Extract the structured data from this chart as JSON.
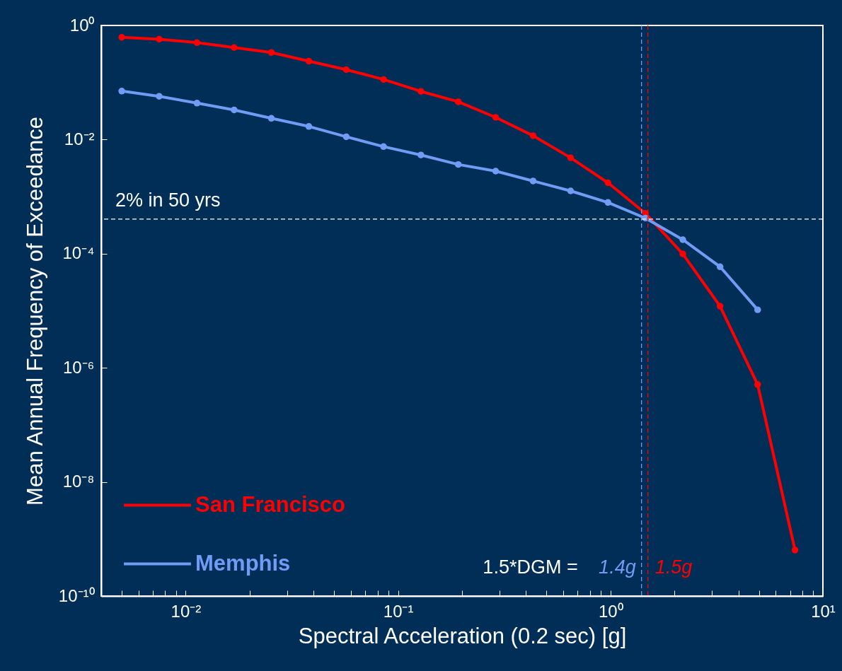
{
  "chart_data": {
    "type": "line",
    "xlabel": "Spectral Acceleration (0.2 sec)   [g]",
    "ylabel": "Mean Annual Frequency of Exceedance",
    "log": "xy",
    "grid": false,
    "legend": "bottom left",
    "marker": "circle",
    "line_style": "solid",
    "x": [
      0.005,
      0.0075,
      0.0113,
      0.0169,
      0.0253,
      0.038,
      0.057,
      0.0854,
      0.128,
      0.192,
      0.288,
      0.432,
      0.649,
      0.973,
      1.46,
      2.19,
      3.28,
      4.93,
      7.39
    ],
    "series": [
      {
        "name": "San Francisco",
        "color": "#ff0000",
        "values": [
          0.62,
          0.575,
          0.5,
          0.41,
          0.336,
          0.237,
          0.168,
          0.113,
          0.07,
          0.046,
          0.0245,
          0.0117,
          0.0048,
          0.00175,
          0.00051,
          9.9e-05,
          1.2e-05,
          5.1e-07,
          6.4e-10
        ]
      },
      {
        "name": "Memphis",
        "color": "#6f9cf5",
        "values": [
          0.0708,
          0.0573,
          0.0436,
          0.0331,
          0.0236,
          0.017,
          0.0112,
          0.00753,
          0.00537,
          0.00366,
          0.0028,
          0.00188,
          0.00126,
          0.00079,
          0.00042,
          0.000176,
          5.9e-05,
          1.04e-05,
          null
        ]
      }
    ],
    "xlim": [
      0.004,
      10
    ],
    "xticks": [
      {
        "value": 0.005,
        "label": null
      },
      {
        "value": 0.006,
        "label": null
      },
      {
        "value": 0.007,
        "label": null
      },
      {
        "value": 0.008,
        "label": null
      },
      {
        "value": 0.009,
        "label": null
      },
      {
        "value": 0.01,
        "label": "10⁻²"
      },
      {
        "value": 0.02,
        "label": null
      },
      {
        "value": 0.03,
        "label": null
      },
      {
        "value": 0.04,
        "label": null
      },
      {
        "value": 0.05,
        "label": null
      },
      {
        "value": 0.06,
        "label": null
      },
      {
        "value": 0.07,
        "label": null
      },
      {
        "value": 0.08,
        "label": null
      },
      {
        "value": 0.09,
        "label": null
      },
      {
        "value": 0.1,
        "label": "10⁻¹"
      },
      {
        "value": 0.2,
        "label": null
      },
      {
        "value": 0.3,
        "label": null
      },
      {
        "value": 0.4,
        "label": null
      },
      {
        "value": 0.5,
        "label": null
      },
      {
        "value": 0.6,
        "label": null
      },
      {
        "value": 0.7,
        "label": null
      },
      {
        "value": 0.8,
        "label": null
      },
      {
        "value": 0.9,
        "label": null
      },
      {
        "value": 1,
        "label": "10⁰"
      },
      {
        "value": 2,
        "label": null
      },
      {
        "value": 3,
        "label": null
      },
      {
        "value": 4,
        "label": null
      },
      {
        "value": 5,
        "label": null
      },
      {
        "value": 6,
        "label": null
      },
      {
        "value": 7,
        "label": null
      },
      {
        "value": 8,
        "label": null
      },
      {
        "value": 9,
        "label": null
      },
      {
        "value": 10,
        "label": "10¹"
      }
    ],
    "ylim": [
      1e-10,
      1
    ],
    "yticks": [
      {
        "value": 1e-10,
        "label": "10⁻¹⁰"
      },
      {
        "value": 1e-08,
        "label": "10⁻⁸"
      },
      {
        "value": 1e-06,
        "label": "10⁻⁶"
      },
      {
        "value": 0.0001,
        "label": "10⁻⁴"
      },
      {
        "value": 0.01,
        "label": "10⁻²"
      },
      {
        "value": 1,
        "label": "10⁰"
      }
    ],
    "ref_lines": [
      {
        "axis": "y",
        "value": 0.000404,
        "label": "2% in 50 yrs",
        "color": "#ffffff",
        "line_style": "dashed"
      },
      {
        "axis": "x",
        "value": 1.4,
        "label": "1.4g",
        "color": "#6f9cf5",
        "line_style": "dashed"
      },
      {
        "axis": "x",
        "value": 1.5,
        "label": "1.5g",
        "color": "#ff0000",
        "line_style": "dashed"
      }
    ],
    "annotations": [
      "1.5*DGM ="
    ]
  }
}
